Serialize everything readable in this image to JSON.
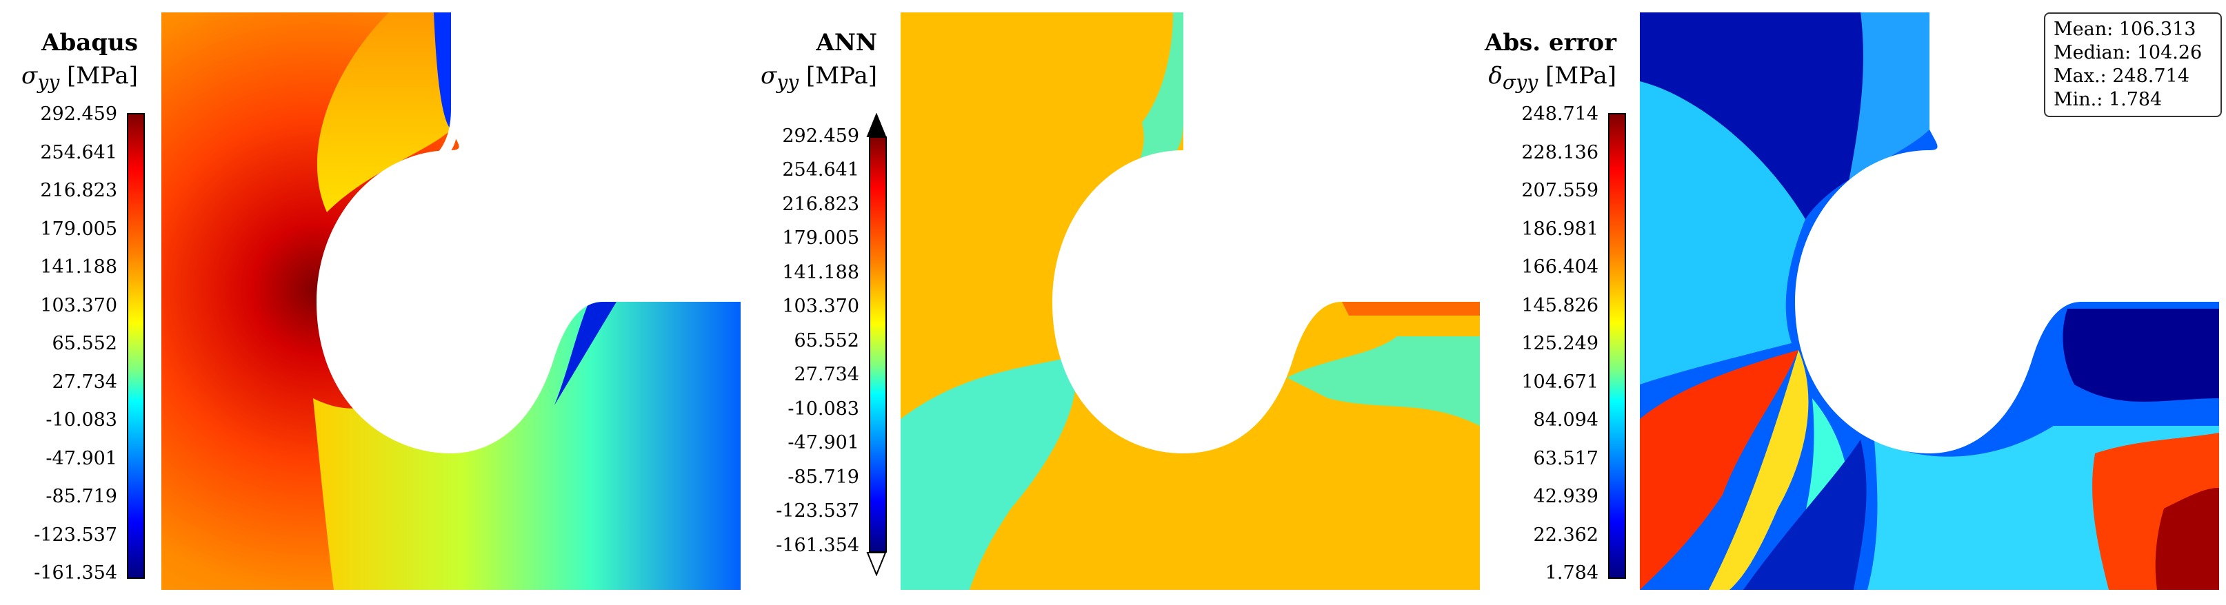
{
  "panels": [
    {
      "title": "Abaqus",
      "subtitle_symbol": "σ",
      "subtitle_subscript": "yy",
      "subtitle_unit": "[MPa]",
      "ticks": [
        "292.459",
        "254.641",
        "216.823",
        "179.005",
        "141.188",
        "103.370",
        "65.552",
        "27.734",
        "-10.083",
        "-47.901",
        "-85.719",
        "-123.537",
        "-161.354"
      ],
      "colorbar_extend": false
    },
    {
      "title": "ANN",
      "subtitle_symbol": "σ",
      "subtitle_subscript": "yy",
      "subtitle_unit": "[MPa]",
      "ticks": [
        "292.459",
        "254.641",
        "216.823",
        "179.005",
        "141.188",
        "103.370",
        "65.552",
        "27.734",
        "-10.083",
        "-47.901",
        "-85.719",
        "-123.537",
        "-161.354"
      ],
      "colorbar_extend": true
    },
    {
      "title": "Abs. error",
      "subtitle_symbol": "δ",
      "subtitle_subscript": "σyy",
      "subtitle_unit": "[MPa]",
      "ticks": [
        "248.714",
        "228.136",
        "207.559",
        "186.981",
        "166.404",
        "145.826",
        "125.249",
        "104.671",
        "84.094",
        "63.517",
        "42.939",
        "22.362",
        "1.784"
      ],
      "colorbar_extend": false
    }
  ],
  "stats": {
    "mean": "Mean: 106.313",
    "median": "Median: 104.26",
    "max": "Max.: 248.714",
    "min": "Min.: 1.784"
  },
  "colormap": "jet"
}
